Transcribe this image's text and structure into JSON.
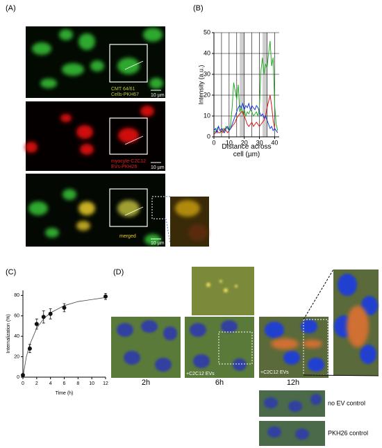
{
  "panels": [
    "(A)",
    "(B)",
    "(C)",
    "(D)"
  ],
  "panel_a": {
    "caption_top": [
      "CMT 64/61",
      "Cells-PKH67"
    ],
    "caption_mid": [
      "myocyte-C2C12",
      "EVs-PKH26"
    ],
    "caption_bottom": "merged",
    "scale": "10 µm"
  },
  "panel_d": {
    "times": [
      "2h",
      "6h",
      "12h"
    ],
    "treatment": "+C2C12 EVs",
    "controls": [
      "no EV control",
      "PKH26 control"
    ]
  },
  "chart_data": [
    {
      "type": "line",
      "ylabel": "Intensity (a.u.)",
      "xlabel": "Distance across cell (µm)",
      "x": [
        0,
        1,
        2,
        3,
        4,
        5,
        6,
        7,
        8,
        9,
        10,
        11,
        12,
        13,
        14,
        15,
        16,
        17,
        18,
        19,
        20,
        21,
        22,
        23,
        24,
        25,
        26,
        27,
        28,
        29,
        30,
        31,
        32,
        33,
        34,
        35,
        36,
        37,
        38,
        39,
        40,
        41,
        42
      ],
      "series": [
        {
          "color": "#22aa22",
          "values": [
            3,
            2,
            4,
            5,
            3,
            2,
            4,
            3,
            5,
            4,
            3,
            6,
            14,
            26,
            22,
            18,
            25,
            12,
            14,
            11,
            13,
            10,
            12,
            11,
            13,
            12,
            10,
            11,
            12,
            10,
            14,
            32,
            38,
            30,
            35,
            33,
            40,
            46,
            34,
            38,
            15,
            6,
            3
          ]
        },
        {
          "color": "#dd1111",
          "values": [
            1,
            2,
            3,
            2,
            2,
            3,
            2,
            4,
            3,
            2,
            3,
            4,
            5,
            6,
            7,
            9,
            10,
            11,
            12,
            12,
            10,
            8,
            6,
            5,
            6,
            7,
            5,
            6,
            7,
            6,
            5,
            6,
            7,
            8,
            10,
            14,
            17,
            20,
            15,
            8,
            4,
            3,
            2
          ]
        },
        {
          "color": "#1133dd",
          "values": [
            3,
            4,
            2,
            5,
            3,
            4,
            3,
            2,
            4,
            5,
            3,
            4,
            6,
            8,
            10,
            12,
            14,
            15,
            14,
            16,
            13,
            15,
            14,
            16,
            13,
            15,
            14,
            13,
            15,
            14,
            12,
            10,
            11,
            9,
            10,
            8,
            6,
            4,
            5,
            3,
            4,
            3,
            2
          ]
        }
      ],
      "bands": [
        [
          17,
          20
        ],
        [
          32,
          35
        ]
      ],
      "xlim": [
        0,
        43
      ],
      "xticks": [
        0,
        10,
        20,
        30,
        40
      ],
      "vgrid": [
        5,
        10,
        15,
        20,
        25,
        30,
        35,
        40
      ],
      "ylim": [
        0,
        50
      ],
      "yticks": [
        0,
        10,
        20,
        30,
        40,
        50
      ],
      "grid": true
    },
    {
      "type": "scatter",
      "ylabel": "Internalization (%)",
      "xlabel": "Time (h)",
      "x": [
        0,
        1,
        2,
        3,
        4,
        6,
        12
      ],
      "values": [
        2,
        28,
        52,
        59,
        62,
        68,
        79
      ],
      "errors": [
        1,
        4,
        5,
        6,
        5,
        4,
        3
      ],
      "fit": {
        "x": [
          0,
          0.5,
          1,
          2,
          3,
          4,
          6,
          8,
          10,
          12
        ],
        "values": [
          0,
          20,
          32,
          48,
          57,
          63,
          70,
          74,
          76,
          78
        ]
      },
      "color": "#111111",
      "xlim": [
        0,
        12
      ],
      "xticks": [
        0,
        2,
        4,
        6,
        8,
        10,
        12
      ],
      "ylim": [
        0,
        85
      ],
      "yticks": [
        0,
        20,
        40,
        60,
        80
      ]
    }
  ]
}
